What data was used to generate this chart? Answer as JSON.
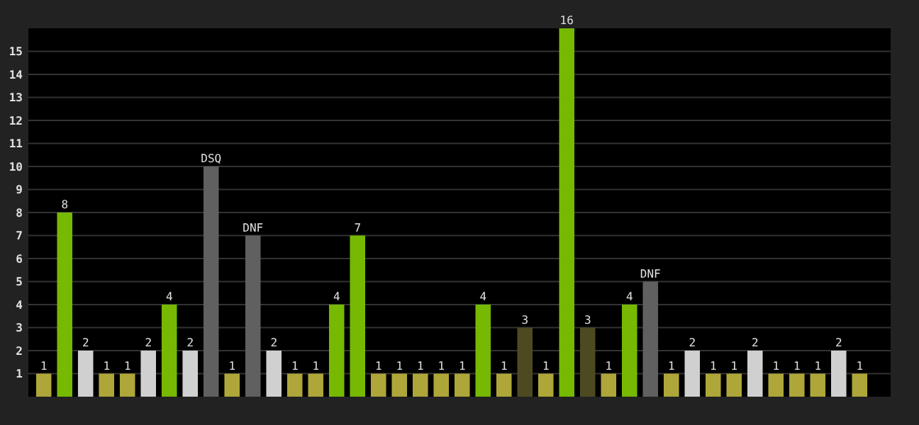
{
  "chart_data": {
    "type": "bar",
    "categories": [
      null,
      null,
      null,
      null,
      null,
      null,
      null,
      null,
      null,
      null,
      null,
      null,
      null,
      null,
      null,
      null,
      null,
      null,
      null,
      null,
      null,
      null,
      null,
      null,
      null,
      null,
      null,
      null,
      null,
      null,
      null,
      null,
      null,
      null,
      null,
      null,
      null,
      null,
      null,
      null
    ],
    "values": [
      1,
      8,
      2,
      1,
      1,
      2,
      4,
      2,
      10,
      1,
      7,
      2,
      1,
      1,
      4,
      7,
      1,
      1,
      1,
      1,
      1,
      4,
      1,
      3,
      1,
      16,
      3,
      1,
      4,
      5,
      1,
      2,
      1,
      1,
      2,
      1,
      1,
      1,
      2,
      1
    ],
    "colors": [
      "#aea639",
      "#76b900",
      "#d0d0d0",
      "#aea639",
      "#aea639",
      "#d0d0d0",
      "#76b900",
      "#d0d0d0",
      "#606060",
      "#aea639",
      "#606060",
      "#d0d0d0",
      "#aea639",
      "#aea639",
      "#76b900",
      "#76b900",
      "#aea639",
      "#aea639",
      "#aea639",
      "#aea639",
      "#aea639",
      "#76b900",
      "#aea639",
      "#4d4a22",
      "#aea639",
      "#76b900",
      "#4d4a22",
      "#aea639",
      "#76b900",
      "#606060",
      "#aea639",
      "#d0d0d0",
      "#aea639",
      "#aea639",
      "#d0d0d0",
      "#aea639",
      "#aea639",
      "#aea639",
      "#d0d0d0",
      "#aea639"
    ],
    "value_labels": [
      "1",
      "8",
      "2",
      "1",
      "1",
      "2",
      "4",
      "2",
      "DSQ",
      "1",
      "DNF",
      "2",
      "1",
      "1",
      "4",
      "7",
      "1",
      "1",
      "1",
      "1",
      "1",
      "4",
      "1",
      "3",
      "1",
      "16",
      "3",
      "1",
      "4",
      "DNF",
      "1",
      "2",
      "1",
      "1",
      "2",
      "1",
      "1",
      "1",
      "2",
      "1"
    ],
    "ylim": [
      0,
      16
    ],
    "yticks": [
      1,
      2,
      3,
      4,
      5,
      6,
      7,
      8,
      9,
      10,
      11,
      12,
      13,
      14,
      15
    ],
    "grid": "y"
  }
}
